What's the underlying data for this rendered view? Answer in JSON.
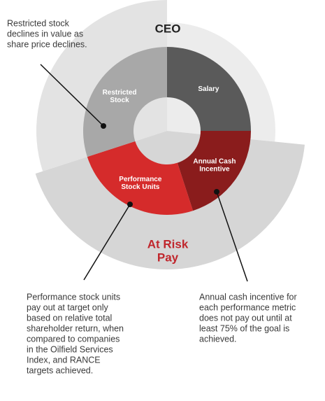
{
  "chart_data": {
    "type": "donut",
    "title": "CEO",
    "categories": [
      [
        "Salary"
      ],
      [
        "Annual Cash",
        "Incentive"
      ],
      [
        "Performance",
        "Stock Units"
      ],
      [
        "Restricted",
        "Stock"
      ]
    ],
    "values": [
      25,
      20,
      25,
      30
    ],
    "colors": [
      "#5a5a5a",
      "#8a1c1c",
      "#d52b2b",
      "#a8a8a8"
    ],
    "group_label": [
      "At Risk",
      "Pay"
    ],
    "annotations": [
      [
        "Restricted stock",
        "declines in value as",
        "share price declines."
      ],
      [
        "Performance stock units",
        "pay out at target only",
        "based on relative total",
        "shareholder return, when",
        "compared to companies",
        "in the Oilfield Services",
        "Index, and RANCE",
        "targets achieved."
      ],
      [
        "Annual cash incentive for",
        "each performance metric",
        "does not pay out until at",
        "least 75% of the goal is",
        "achieved."
      ]
    ]
  }
}
